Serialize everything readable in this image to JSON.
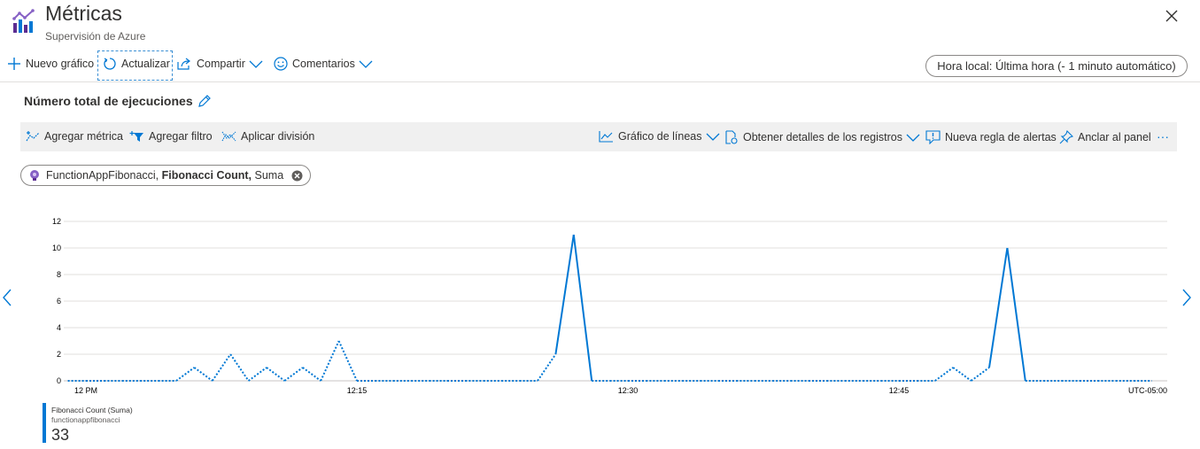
{
  "header": {
    "title": "Métricas",
    "subtitle": "Supervisión de Azure",
    "icon": "metrics-icon",
    "close_icon": "close-icon"
  },
  "toolbar": {
    "new_chart": "Nuevo gráfico",
    "refresh": "Actualizar",
    "share": "Compartir",
    "feedback": "Comentarios",
    "time_range": "Hora local: Última hora (- 1 minuto automático)"
  },
  "chart_panel": {
    "title": "Número total de ejecuciones",
    "add_metric": "Agregar métrica",
    "add_filter": "Agregar filtro",
    "apply_split": "Aplicar división",
    "line_chart": "Gráfico de líneas",
    "get_logs": "Obtener detalles de los registros",
    "new_alert": "Nueva regla de alertas",
    "pin": "Anclar al panel",
    "more": "···"
  },
  "metric_pill": {
    "resource": "FunctionAppFibonacci,",
    "metric": "Fibonacci Count,",
    "aggregation": "Suma"
  },
  "chart_data": {
    "type": "line",
    "y_ticks": [
      "12",
      "10",
      "8",
      "6",
      "4",
      "2",
      "0"
    ],
    "ylim": [
      0,
      12
    ],
    "x_ticks": [
      "12 PM",
      "12:15",
      "12:30",
      "12:45"
    ],
    "timezone": "UTC-05:00",
    "x_unit": "minutes after 12 PM",
    "series": [
      {
        "name": "Fibonacci Count (Suma)",
        "color": "#0078d4",
        "x": [
          -1,
          0,
          1,
          2,
          3,
          4,
          5,
          6,
          7,
          8,
          9,
          10,
          11,
          12,
          13,
          14,
          15,
          16,
          17,
          18,
          19,
          20,
          21,
          22,
          23,
          24,
          25,
          26,
          27,
          28,
          29,
          30,
          31,
          32,
          33,
          34,
          35,
          36,
          37,
          38,
          39,
          40,
          41,
          42,
          43,
          44,
          45,
          46,
          47,
          48,
          49,
          50,
          51,
          52,
          53,
          54,
          55,
          56,
          57,
          58,
          59
        ],
        "values": [
          0,
          0,
          0,
          0,
          0,
          0,
          0,
          1,
          0,
          2,
          0,
          1,
          0,
          1,
          0,
          3,
          0,
          0,
          0,
          0,
          0,
          0,
          0,
          0,
          0,
          0,
          0,
          2,
          11,
          0,
          0,
          0,
          0,
          0,
          0,
          0,
          0,
          0,
          0,
          0,
          0,
          0,
          0,
          0,
          0,
          0,
          0,
          0,
          0,
          1,
          0,
          1,
          10,
          0,
          0,
          0,
          0,
          0,
          0,
          0,
          0
        ],
        "solid_segments": [
          [
            26,
            28
          ],
          [
            50,
            52
          ]
        ]
      }
    ]
  },
  "legend": {
    "name": "Fibonacci Count (Suma)",
    "resource": "functionappfibonacci",
    "value": "33"
  }
}
